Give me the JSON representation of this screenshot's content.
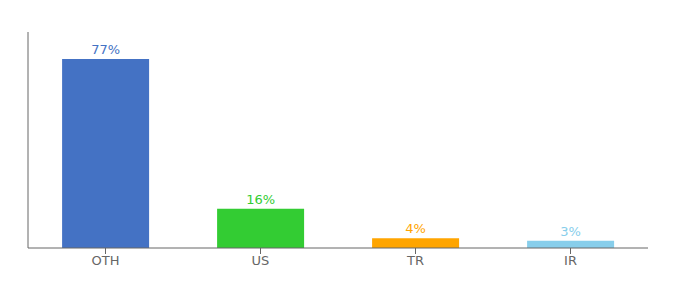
{
  "chart_data": {
    "type": "bar",
    "categories": [
      "OTH",
      "US",
      "TR",
      "IR"
    ],
    "values": [
      77,
      16,
      4,
      3
    ],
    "value_labels": [
      "77%",
      "16%",
      "4%",
      "3%"
    ],
    "colors": [
      "#4472C4",
      "#33CC33",
      "#FFA500",
      "#87CEEB"
    ],
    "ylim": [
      0,
      88
    ],
    "data_labels": true,
    "tick_labels": "x"
  }
}
